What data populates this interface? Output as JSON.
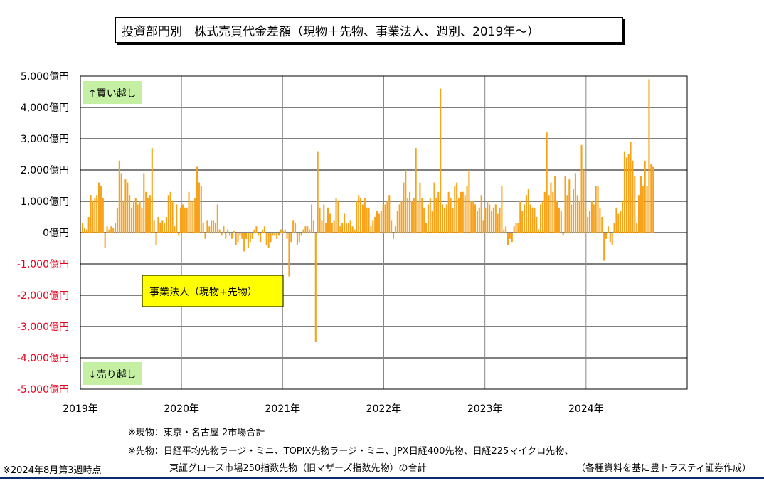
{
  "title": "投資部門別　株式売買代金差額（現物＋先物、事業法人、週別、2019年～）",
  "chart_data": {
    "type": "bar",
    "title": "投資部門別　株式売買代金差額（現物＋先物、事業法人、週別、2019年～）",
    "series_name": "事業法人（現物+先物）",
    "ylim": [
      -5000,
      5000
    ],
    "y_ticks": [
      {
        "value": 5000,
        "label": "5,000億円"
      },
      {
        "value": 4000,
        "label": "4,000億円"
      },
      {
        "value": 3000,
        "label": "3,000億円"
      },
      {
        "value": 2000,
        "label": "2,000億円"
      },
      {
        "value": 1000,
        "label": "1,000億円"
      },
      {
        "value": 0,
        "label": "0億円"
      },
      {
        "value": -1000,
        "label": "-1,000億円"
      },
      {
        "value": -2000,
        "label": "-2,000億円"
      },
      {
        "value": -3000,
        "label": "-3,000億円"
      },
      {
        "value": -4000,
        "label": "-4,000億円"
      },
      {
        "value": -5000,
        "label": "-5,000億円"
      }
    ],
    "x_ticks": [
      "2019年",
      "2020年",
      "2021年",
      "2022年",
      "2023年",
      "2024年"
    ],
    "x_range_years": [
      2019,
      2025
    ],
    "grid": true,
    "up_label": "↑買い越し",
    "down_label": "↓売り越し",
    "bar_color": "#f7a21b",
    "negative_label_color": "#e8001c",
    "label_box_color": "#c5f0a4",
    "legend_box_color": "#ffff00",
    "values": [
      300,
      150,
      100,
      500,
      1200,
      1000,
      1100,
      1200,
      1600,
      1500,
      1100,
      -500,
      200,
      100,
      200,
      150,
      300,
      800,
      2300,
      1900,
      1000,
      1700,
      1600,
      1200,
      800,
      1000,
      1100,
      900,
      1000,
      800,
      1900,
      1300,
      1100,
      1200,
      2700,
      400,
      -400,
      500,
      300,
      400,
      300,
      500,
      1200,
      1300,
      1000,
      200,
      900,
      -100,
      800,
      900,
      800,
      800,
      1300,
      1000,
      1000,
      1100,
      2100,
      1600,
      1500,
      300,
      -200,
      400,
      200,
      400,
      400,
      300,
      900,
      100,
      -100,
      200,
      -200,
      100,
      -100,
      -200,
      50,
      -400,
      -300,
      -100,
      -200,
      -600,
      -200,
      -500,
      -300,
      -200,
      100,
      200,
      -100,
      -300,
      100,
      200,
      -400,
      -500,
      -300,
      -100,
      -100,
      -200,
      -100,
      100,
      50,
      100,
      -200,
      -1400,
      -300,
      400,
      300,
      -400,
      -300,
      -100,
      100,
      200,
      200,
      100,
      900,
      400,
      -3500,
      2600,
      800,
      400,
      900,
      300,
      800,
      600,
      300,
      400,
      1100,
      1000,
      200,
      300,
      600,
      300,
      300,
      400,
      200,
      100,
      1000,
      1200,
      1100,
      900,
      1100,
      800,
      800,
      200,
      400,
      500,
      700,
      600,
      700,
      900,
      900,
      1000,
      1200,
      400,
      -200,
      200,
      700,
      900,
      1000,
      1600,
      2000,
      1100,
      1300,
      1000,
      1100,
      2700,
      1000,
      1600,
      1100,
      800,
      300,
      900,
      1100,
      700,
      1600,
      1100,
      1300,
      4600,
      900,
      800,
      900,
      1300,
      1100,
      800,
      1500,
      1600,
      1100,
      1300,
      1300,
      1200,
      1500,
      2000,
      1000,
      1000,
      900,
      700,
      800,
      1200,
      400,
      800,
      1000,
      900,
      700,
      800,
      900,
      600,
      800,
      1500,
      100,
      200,
      -400,
      -200,
      -300,
      200,
      300,
      300,
      1000,
      700,
      900,
      1200,
      1400,
      900,
      800,
      800,
      500,
      100,
      900,
      1000,
      1300,
      3200,
      1200,
      1600,
      1300,
      1800,
      1000,
      800,
      700,
      -100,
      1800,
      1200,
      1700,
      900,
      1400,
      1900,
      1200,
      1000,
      2800,
      2000,
      800,
      500,
      700,
      1000,
      900,
      1500,
      1500,
      800,
      500,
      -900,
      -200,
      200,
      -300,
      -400,
      300,
      800,
      600,
      700,
      1000,
      2600,
      2400,
      2500,
      2900,
      2300,
      1800,
      300,
      1200,
      1800,
      1500,
      2300,
      1500,
      4900,
      2200,
      2100
    ]
  },
  "notes": {
    "genbutsu": "※現物：東京・名古屋 2市場合計",
    "sakimono_1": "※先物：日経平均先物ラージ・ミニ、TOPIX先物ラージ・ミニ、JPX日経400先物、日経225マイクロ先物、",
    "sakimono_2": "東証グロース市場250指数先物（旧マザーズ指数先物）の合計",
    "as_of": "※2024年8月第3週時点",
    "source": "（各種資料を基に豊トラスティ証券作成）"
  }
}
